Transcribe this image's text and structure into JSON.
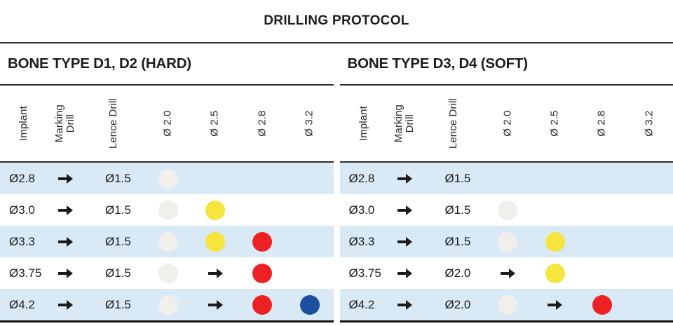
{
  "title": "DRILLING PROTOCOL",
  "colors": {
    "dot-gray": "#f0efec",
    "dot-yellow": "#f6e53c",
    "dot-red": "#ed2024",
    "dot-blue": "#1c4f9e",
    "row-highlight": "#d9e9f5",
    "text": "#1d1d1b"
  },
  "tables": [
    {
      "section_title": "BONE TYPE D1, D2 (HARD)",
      "columns": [
        "Implant",
        "Marking\nDrill",
        "Lence Drill",
        "Ø 2.0",
        "Ø 2.5",
        "Ø 2.8",
        "Ø 3.2"
      ],
      "rows": [
        {
          "implant": "Ø2.8",
          "lence": "Ø1.5",
          "cells": [
            "dot-gray",
            "",
            "",
            ""
          ]
        },
        {
          "implant": "Ø3.0",
          "lence": "Ø1.5",
          "cells": [
            "dot-gray",
            "dot-yellow",
            "",
            ""
          ]
        },
        {
          "implant": "Ø3.3",
          "lence": "Ø1.5",
          "cells": [
            "dot-gray",
            "dot-yellow",
            "dot-red",
            ""
          ]
        },
        {
          "implant": "Ø3.75",
          "lence": "Ø1.5",
          "cells": [
            "dot-gray",
            "arrow",
            "dot-red",
            ""
          ]
        },
        {
          "implant": "Ø4.2",
          "lence": "Ø1.5",
          "cells": [
            "dot-gray",
            "arrow",
            "dot-red",
            "dot-blue"
          ]
        }
      ]
    },
    {
      "section_title": "BONE TYPE D3, D4 (SOFT)",
      "columns": [
        "Implant",
        "Marking\nDrill",
        "Lence Drill",
        "Ø 2.0",
        "Ø 2.5",
        "Ø 2.8",
        "Ø 3.2"
      ],
      "rows": [
        {
          "implant": "Ø2.8",
          "lence": "Ø1.5",
          "cells": [
            "",
            "",
            "",
            ""
          ]
        },
        {
          "implant": "Ø3.0",
          "lence": "Ø1.5",
          "cells": [
            "dot-gray",
            "",
            "",
            ""
          ]
        },
        {
          "implant": "Ø3.3",
          "lence": "Ø1.5",
          "cells": [
            "dot-gray",
            "dot-yellow",
            "",
            ""
          ]
        },
        {
          "implant": "Ø3.75",
          "lence": "Ø2.0",
          "cells": [
            "arrow",
            "dot-yellow",
            "",
            ""
          ]
        },
        {
          "implant": "Ø4.2",
          "lence": "Ø2.0",
          "cells": [
            "dot-gray",
            "arrow",
            "dot-red",
            ""
          ]
        }
      ]
    }
  ]
}
